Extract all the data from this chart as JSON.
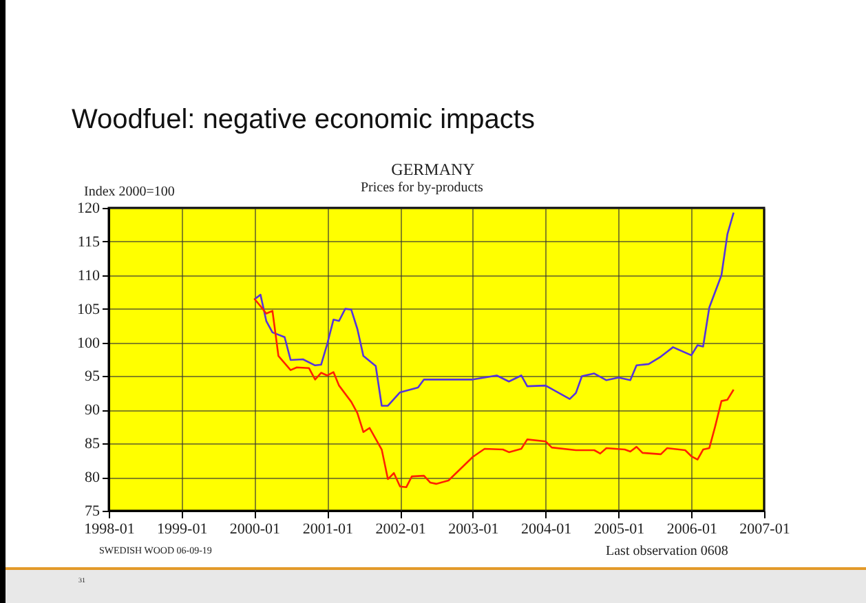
{
  "chart_data": {
    "type": "line",
    "title": "Woodfuel: negative economic impacts",
    "subtitle": "GERMANY",
    "ylabel": "Index 2000=100",
    "annotations": [
      "Prices for by-products",
      "SWEDISH WOOD 06-09-19",
      "Last observation 0608",
      "31"
    ],
    "xlim": [
      "1998-01",
      "2007-01"
    ],
    "xticks": [
      {
        "value": "1998-01",
        "label": "1998-01"
      },
      {
        "value": "1999-01",
        "label": "1999-01"
      },
      {
        "value": "2000-01",
        "label": "2000-01"
      },
      {
        "value": "2001-01",
        "label": "2001-01"
      },
      {
        "value": "2002-01",
        "label": "2002-01"
      },
      {
        "value": "2003-01",
        "label": "2003-01"
      },
      {
        "value": "2004-01",
        "label": "2004-01"
      },
      {
        "value": "2005-01",
        "label": "2005-01"
      },
      {
        "value": "2006-01",
        "label": "2006-01"
      },
      {
        "value": "2007-01",
        "label": "2007-01"
      }
    ],
    "ylim": [
      75,
      120
    ],
    "yticks": [
      75,
      80,
      85,
      90,
      95,
      100,
      105,
      110,
      115,
      120
    ],
    "grid": true,
    "line_style": "solid",
    "series": [
      {
        "color": "#5533dd",
        "x": [
          "2000-01",
          "2000-02",
          "2000-03",
          "2000-04",
          "2000-06",
          "2000-07",
          "2000-09",
          "2000-11",
          "2000-12",
          "2001-01",
          "2001-02",
          "2001-03",
          "2001-04",
          "2001-05",
          "2001-06",
          "2001-07",
          "2001-09",
          "2001-10",
          "2001-11",
          "2002-01",
          "2002-04",
          "2002-05",
          "2003-01",
          "2003-05",
          "2003-07",
          "2003-09",
          "2003-10",
          "2004-01",
          "2004-05",
          "2004-06",
          "2004-07",
          "2004-09",
          "2004-11",
          "2005-01",
          "2005-03",
          "2005-04",
          "2005-06",
          "2005-08",
          "2005-10",
          "2006-01",
          "2006-02",
          "2006-03",
          "2006-04",
          "2006-06",
          "2006-07",
          "2006-08"
        ],
        "values": [
          106.4,
          107.1,
          103.2,
          101.5,
          100.8,
          97.4,
          97.5,
          96.6,
          96.7,
          99.8,
          103.4,
          103.2,
          105.0,
          104.9,
          102.0,
          98.0,
          96.5,
          90.6,
          90.6,
          92.6,
          93.3,
          94.5,
          94.5,
          95.1,
          94.2,
          95.1,
          93.5,
          93.6,
          91.6,
          92.5,
          95.0,
          95.4,
          94.4,
          94.8,
          94.4,
          96.6,
          96.8,
          97.9,
          99.3,
          98.1,
          99.6,
          99.4,
          105.2,
          110.0,
          116.1,
          119.3
        ]
      },
      {
        "color": "#ff2200",
        "x": [
          "2000-01",
          "2000-02",
          "2000-03",
          "2000-04",
          "2000-05",
          "2000-07",
          "2000-08",
          "2000-10",
          "2000-11",
          "2000-12",
          "2001-01",
          "2001-02",
          "2001-03",
          "2001-05",
          "2001-06",
          "2001-07",
          "2001-08",
          "2001-10",
          "2001-11",
          "2001-12",
          "2002-01",
          "2002-02",
          "2002-03",
          "2002-05",
          "2002-06",
          "2002-07",
          "2002-09",
          "2003-01",
          "2003-03",
          "2003-06",
          "2003-07",
          "2003-09",
          "2003-10",
          "2004-01",
          "2004-02",
          "2004-06",
          "2004-09",
          "2004-10",
          "2004-11",
          "2005-02",
          "2005-03",
          "2005-04",
          "2005-05",
          "2005-08",
          "2005-09",
          "2005-12",
          "2006-01",
          "2006-02",
          "2006-03",
          "2006-04",
          "2006-05",
          "2006-06",
          "2006-07",
          "2006-08"
        ],
        "values": [
          106.5,
          105.4,
          104.3,
          104.7,
          98.0,
          95.9,
          96.3,
          96.2,
          94.5,
          95.5,
          95.1,
          95.6,
          93.6,
          91.2,
          89.5,
          86.7,
          87.3,
          84.1,
          79.7,
          80.6,
          78.6,
          78.5,
          80.1,
          80.2,
          79.2,
          79.0,
          79.5,
          83.0,
          84.2,
          84.1,
          83.7,
          84.2,
          85.6,
          85.3,
          84.4,
          84.0,
          84.0,
          83.5,
          84.3,
          84.1,
          83.8,
          84.5,
          83.6,
          83.4,
          84.3,
          84.0,
          83.1,
          82.6,
          84.1,
          84.3,
          87.6,
          91.3,
          91.5,
          93.0
        ]
      }
    ]
  }
}
